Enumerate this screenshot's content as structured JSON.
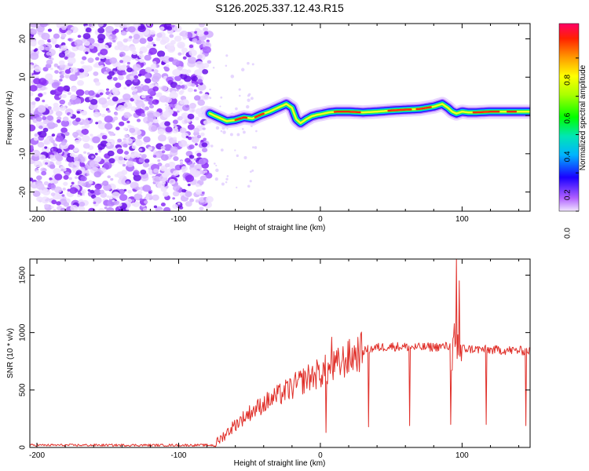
{
  "title": "S126.2025.337.12.43.R15",
  "colorbar": {
    "label": "Normalized spectral amplitude",
    "ticks": [
      "0.0",
      "0.2",
      "0.4",
      "0.6",
      "0.8"
    ]
  },
  "chart_data": [
    {
      "type": "heatmap",
      "name": "spectrogram",
      "xlabel": "Height of straight line (km)",
      "ylabel": "Frequency (Hz)",
      "xlim": [
        -205,
        148
      ],
      "ylim": [
        -25,
        24
      ],
      "xticks": [
        -200,
        -100,
        0,
        100
      ],
      "yticks": [
        -20,
        -10,
        0,
        10,
        20
      ],
      "xtick_labels": [
        "-200",
        "-100",
        "0",
        "100"
      ],
      "ytick_labels": [
        "-20",
        "-10",
        "0",
        "10",
        "20"
      ],
      "noise_region_x": [
        -205,
        -78
      ],
      "signal_centerline": {
        "x": [
          -78,
          -72,
          -66,
          -60,
          -54,
          -48,
          -42,
          -36,
          -30,
          -24,
          -20,
          -17,
          -14,
          -10,
          -6,
          -2,
          0,
          6,
          12,
          20,
          30,
          40,
          50,
          60,
          70,
          80,
          86,
          90,
          93,
          96,
          100,
          104,
          110,
          120,
          130,
          140,
          148
        ],
        "hz": [
          0.5,
          -0.5,
          -1.5,
          -1.2,
          -0.5,
          -0.8,
          0.2,
          1.0,
          2.0,
          3.0,
          2.0,
          -1.0,
          -2.0,
          -1.0,
          -0.2,
          0.2,
          0.3,
          0.8,
          1.0,
          1.0,
          0.8,
          1.0,
          1.3,
          1.5,
          1.7,
          2.3,
          3.0,
          2.0,
          1.0,
          0.5,
          1.0,
          0.8,
          0.8,
          1.0,
          1.0,
          1.0,
          1.0
        ]
      }
    },
    {
      "type": "line",
      "name": "snr",
      "xlabel": "Height of straight line (km)",
      "ylabel": "SNR (10 * v/v)",
      "xlim": [
        -205,
        148
      ],
      "ylim": [
        0,
        1640
      ],
      "xticks": [
        -200,
        -100,
        0,
        100
      ],
      "yticks": [
        0,
        500,
        1000,
        1500
      ],
      "xtick_labels": [
        "-200",
        "-100",
        "0",
        "100"
      ],
      "ytick_labels": [
        "0",
        "500",
        "1000",
        "1500"
      ],
      "color": "#e0302a",
      "trend": {
        "x": [
          -205,
          -75,
          -70,
          -60,
          -50,
          -40,
          -30,
          -20,
          -10,
          0,
          10,
          20,
          30,
          40,
          50,
          70,
          90,
          100,
          120,
          148
        ],
        "y": [
          20,
          20,
          80,
          200,
          300,
          380,
          450,
          520,
          600,
          650,
          700,
          780,
          840,
          870,
          880,
          870,
          880,
          860,
          850,
          840
        ]
      },
      "dips": [
        {
          "x": 4,
          "y": 130
        },
        {
          "x": 34,
          "y": 180
        },
        {
          "x": 63,
          "y": 190
        },
        {
          "x": 92,
          "y": 200
        },
        {
          "x": 117,
          "y": 200
        },
        {
          "x": 145,
          "y": 190
        }
      ],
      "spikes": [
        {
          "x": 8,
          "y": 960
        },
        {
          "x": 96,
          "y": 1640
        },
        {
          "x": 98,
          "y": 1450
        }
      ]
    }
  ]
}
